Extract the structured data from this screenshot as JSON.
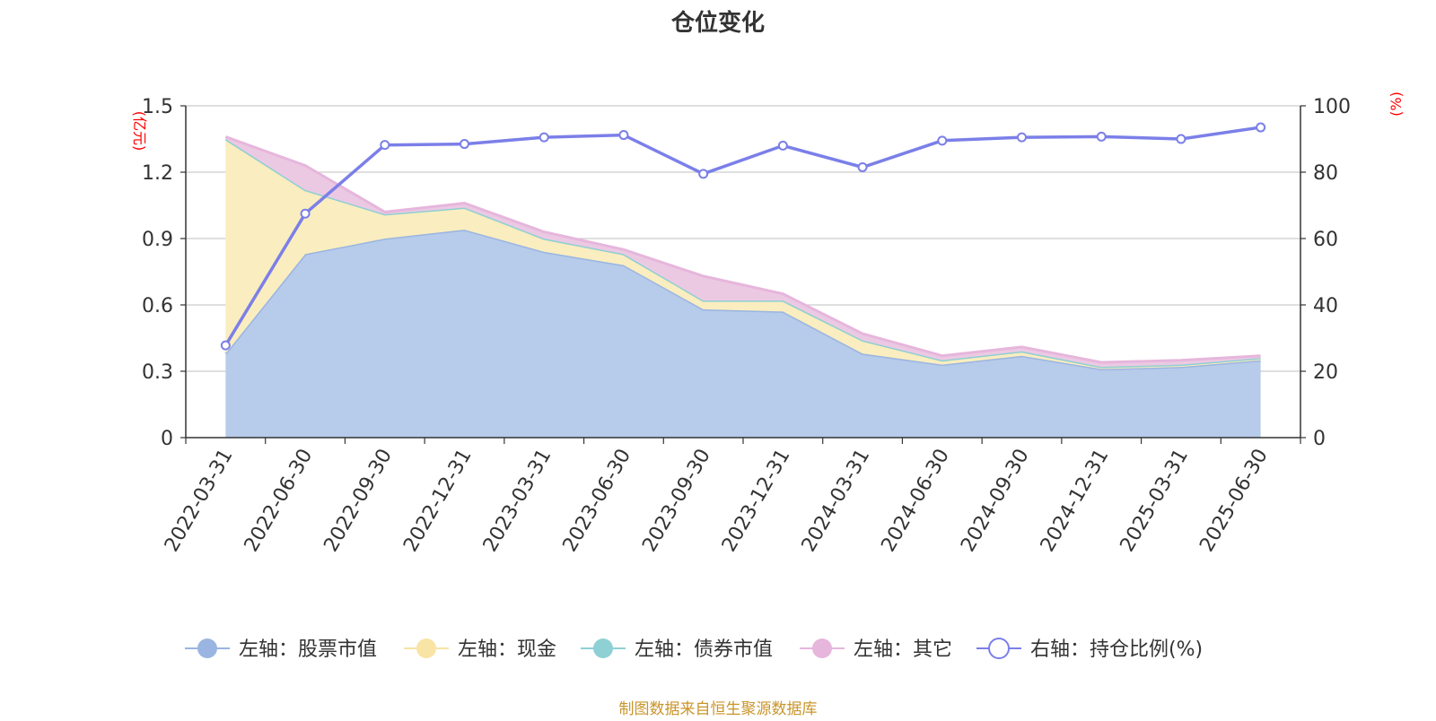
{
  "chart_data": {
    "type": "area",
    "title": "仓位变化",
    "y_left_unit": "(亿元)",
    "y_right_unit": "(%)",
    "y_left_range": [
      0,
      1.5
    ],
    "y_right_range": [
      0,
      100
    ],
    "y_left_ticks": [
      "0",
      "0.3",
      "0.6",
      "0.9",
      "1.2",
      "1.5"
    ],
    "y_right_ticks": [
      "0",
      "20",
      "40",
      "60",
      "80",
      "100"
    ],
    "grid": true,
    "legend_position": "bottom",
    "categories": [
      "2022-03-31",
      "2022-06-30",
      "2022-09-30",
      "2022-12-31",
      "2023-03-31",
      "2023-06-30",
      "2023-09-30",
      "2023-12-31",
      "2024-03-31",
      "2024-06-30",
      "2024-09-30",
      "2024-12-31",
      "2025-03-31",
      "2025-06-30"
    ],
    "series": [
      {
        "name": "左轴：股票市值",
        "axis": "left",
        "style": "stacked-area",
        "color": "#9ab5e1",
        "fill": "#b7cbea",
        "values": [
          0.38,
          0.83,
          0.9,
          0.94,
          0.84,
          0.78,
          0.58,
          0.57,
          0.38,
          0.33,
          0.37,
          0.31,
          0.32,
          0.35
        ]
      },
      {
        "name": "左轴：现金",
        "axis": "left",
        "style": "stacked-area",
        "color": "#f8e4a4",
        "fill": "#faedbf",
        "values": [
          0.97,
          0.29,
          0.11,
          0.1,
          0.06,
          0.05,
          0.04,
          0.05,
          0.06,
          0.02,
          0.02,
          0.01,
          0.01,
          0.01
        ]
      },
      {
        "name": "左轴：债券市值",
        "axis": "left",
        "style": "stacked-area",
        "color": "#8ed0d4",
        "fill": "#b3e1e4",
        "values": [
          0,
          0,
          0,
          0,
          0,
          0,
          0,
          0,
          0,
          0,
          0,
          0,
          0,
          0
        ]
      },
      {
        "name": "左轴：其它",
        "axis": "left",
        "style": "stacked-area",
        "color": "#e6b6dc",
        "fill": "#ecc9e3",
        "values": [
          0.01,
          0.11,
          0.01,
          0.02,
          0.03,
          0.02,
          0.11,
          0.03,
          0.03,
          0.02,
          0.02,
          0.02,
          0.02,
          0.01
        ]
      },
      {
        "name": "右轴：持仓比例(%)",
        "axis": "right",
        "style": "line",
        "color": "#7b7fe8",
        "values": [
          27.8,
          67.5,
          88.2,
          88.5,
          90.5,
          91.2,
          79.5,
          88.0,
          81.5,
          89.5,
          90.5,
          90.7,
          90.0,
          93.5
        ]
      }
    ]
  },
  "footer": {
    "source": "制图数据来自恒生聚源数据库"
  },
  "colors": {
    "title": "#333333",
    "axis": "#333333",
    "grid": "#cccccc",
    "unit_label": "#ff0000",
    "source": "#c9952b"
  }
}
